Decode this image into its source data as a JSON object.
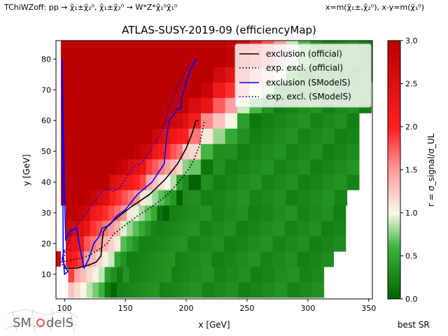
{
  "header": {
    "left_note": "TChiWZoff: pp → χ̃₁±χ̃₂⁰, χ̃₁±χ̃₂⁰ → W*Z*χ̃₁⁰χ̃₁⁰",
    "right_note": "x=m(χ̃₁±,χ̃₂⁰), x-y=m(χ̃₁⁰)"
  },
  "footer": {
    "best_sr_label": "best SR",
    "logo_text": "SModelS"
  },
  "colors": {
    "exclusion_official": "#000000",
    "exclusion_smodels": "#0000ff",
    "cmap_low": "#006400",
    "cmap_mid": "#ffffff",
    "cmap_high": "#bb0000"
  },
  "chart_data": {
    "type": "heatmap",
    "title": "ATLAS-SUSY-2019-09 (efficiencyMap)",
    "xlabel": "x [GeV]",
    "ylabel": "y [GeV]",
    "xlim": [
      93,
      353
    ],
    "ylim": [
      2,
      86
    ],
    "xticks": [
      100,
      150,
      200,
      250,
      300,
      350
    ],
    "yticks": [
      10,
      20,
      30,
      40,
      50,
      60,
      70,
      80
    ],
    "colorbar": {
      "label": "r = σ_signal/σ_UL",
      "range": [
        0,
        3
      ],
      "ticks": [
        0.0,
        0.5,
        1.0,
        1.5,
        2.0,
        2.5,
        3.0
      ]
    },
    "grid": false,
    "legend_position": "top-right",
    "legend": [
      "exclusion (official)",
      "exp. excl. (official)",
      "exclusion (SModelS)",
      "exp. excl. (SModelS)"
    ],
    "series": [
      {
        "name": "exclusion (official)",
        "style": "solid",
        "color": "#000000",
        "points": [
          [
            100,
            12
          ],
          [
            110,
            12
          ],
          [
            120,
            13
          ],
          [
            126,
            14
          ],
          [
            130,
            16
          ],
          [
            131,
            21
          ],
          [
            132,
            24
          ],
          [
            136,
            26
          ],
          [
            145,
            29
          ],
          [
            155,
            32
          ],
          [
            170,
            36
          ],
          [
            183,
            41
          ],
          [
            193,
            46
          ],
          [
            200,
            51
          ],
          [
            205,
            56
          ],
          [
            208,
            60
          ],
          [
            210,
            60
          ]
        ]
      },
      {
        "name": "exp. excl. (official)",
        "style": "dotted",
        "color": "#000000",
        "points": [
          [
            97,
            14
          ],
          [
            110,
            15
          ],
          [
            120,
            16
          ],
          [
            128,
            18
          ],
          [
            135,
            20
          ],
          [
            140,
            23
          ],
          [
            150,
            26
          ],
          [
            160,
            29
          ],
          [
            172,
            32
          ],
          [
            185,
            36
          ],
          [
            196,
            41
          ],
          [
            205,
            46
          ],
          [
            211,
            52
          ],
          [
            214,
            58
          ],
          [
            215,
            60
          ]
        ]
      },
      {
        "name": "exclusion (SModelS)",
        "style": "solid",
        "color": "#0000ff",
        "points": [
          [
            100,
            18
          ],
          [
            98,
            15
          ],
          [
            101,
            12
          ],
          [
            103,
            11
          ],
          [
            100,
            10
          ],
          [
            99,
            15
          ],
          [
            98,
            80
          ],
          [
            100,
            35
          ],
          [
            101,
            21
          ],
          [
            104,
            24
          ],
          [
            110,
            25
          ],
          [
            112,
            20
          ],
          [
            116,
            12
          ],
          [
            120,
            15
          ],
          [
            124,
            20
          ],
          [
            128,
            22
          ],
          [
            131,
            25
          ],
          [
            137,
            26
          ],
          [
            143,
            29
          ],
          [
            150,
            31
          ],
          [
            160,
            36
          ],
          [
            166,
            38
          ],
          [
            172,
            40
          ],
          [
            177,
            43
          ],
          [
            182,
            46
          ],
          [
            184,
            55
          ],
          [
            186,
            60
          ],
          [
            190,
            62
          ],
          [
            193,
            64
          ],
          [
            196,
            64
          ],
          [
            196,
            67
          ],
          [
            198,
            70
          ],
          [
            203,
            76
          ],
          [
            208,
            80
          ]
        ]
      },
      {
        "name": "exp. excl. (SModelS)",
        "style": "dotted",
        "color": "#0000ff",
        "points": [
          [
            98,
            13
          ],
          [
            102,
            19
          ],
          [
            106,
            24
          ],
          [
            112,
            27
          ],
          [
            118,
            30
          ],
          [
            123,
            33
          ],
          [
            127,
            35
          ],
          [
            131,
            37
          ],
          [
            135,
            38
          ],
          [
            140,
            37
          ],
          [
            145,
            38
          ],
          [
            150,
            41
          ],
          [
            157,
            45
          ],
          [
            163,
            46
          ],
          [
            170,
            50
          ],
          [
            178,
            55
          ],
          [
            183,
            60
          ],
          [
            186,
            65
          ],
          [
            190,
            68
          ],
          [
            193,
            71
          ],
          [
            197,
            74
          ],
          [
            202,
            78
          ],
          [
            210,
            80
          ]
        ]
      }
    ]
  }
}
